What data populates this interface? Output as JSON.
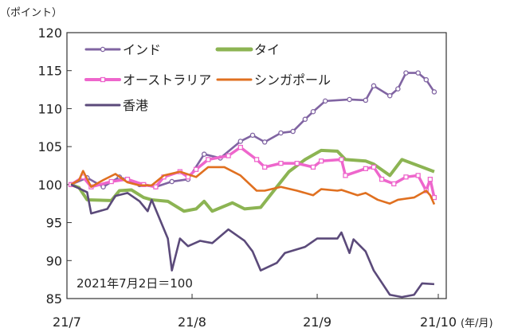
{
  "chart_data": {
    "type": "line",
    "ylabel": "（ポイント）",
    "xlabel_unit": "(年/月)",
    "annotation": "2021年7月2日＝100",
    "ylim": [
      85,
      120
    ],
    "yticks": [
      85,
      90,
      95,
      100,
      105,
      110,
      115,
      120
    ],
    "xlim": [
      "2021-07-01",
      "2021-10-01"
    ],
    "xticks": [
      {
        "date": "2021-07-01",
        "label": "21/7"
      },
      {
        "date": "2021-08-01",
        "label": "21/8"
      },
      {
        "date": "2021-09-01",
        "label": "21/9"
      },
      {
        "date": "2021-10-01",
        "label": "21/10"
      }
    ],
    "grid": false,
    "legend": "top-left",
    "series": [
      {
        "name": "インド",
        "color": "#8064a2",
        "marker": "circle",
        "points": [
          [
            "2021-07-02",
            100
          ],
          [
            "2021-07-06",
            100.9
          ],
          [
            "2021-07-10",
            99.7
          ],
          [
            "2021-07-14",
            101
          ],
          [
            "2021-07-19",
            100
          ],
          [
            "2021-07-23",
            99.7
          ],
          [
            "2021-07-27",
            100.4
          ],
          [
            "2021-07-31",
            100.7
          ],
          [
            "2021-08-04",
            104
          ],
          [
            "2021-08-08",
            103.5
          ],
          [
            "2021-08-13",
            105.7
          ],
          [
            "2021-08-16",
            106.5
          ],
          [
            "2021-08-19",
            105.6
          ],
          [
            "2021-08-23",
            106.8
          ],
          [
            "2021-08-26",
            107
          ],
          [
            "2021-08-29",
            108.6
          ],
          [
            "2021-08-31",
            109.6
          ],
          [
            "2021-09-03",
            111
          ],
          [
            "2021-09-09",
            111.2
          ],
          [
            "2021-09-13",
            111.1
          ],
          [
            "2021-09-15",
            113
          ],
          [
            "2021-09-19",
            111.7
          ],
          [
            "2021-09-21",
            112.6
          ],
          [
            "2021-09-23",
            114.7
          ],
          [
            "2021-09-26",
            114.7
          ],
          [
            "2021-09-28",
            113.8
          ],
          [
            "2021-09-30",
            112.2
          ]
        ]
      },
      {
        "name": "タイ",
        "color": "#8cb453",
        "marker": "none",
        "points": [
          [
            "2021-07-02",
            100
          ],
          [
            "2021-07-04",
            99.6
          ],
          [
            "2021-07-06",
            98
          ],
          [
            "2021-07-12",
            97.9
          ],
          [
            "2021-07-14",
            99.2
          ],
          [
            "2021-07-17",
            99.3
          ],
          [
            "2021-07-20",
            98.3
          ],
          [
            "2021-07-22",
            98
          ],
          [
            "2021-07-26",
            97.8
          ],
          [
            "2021-07-30",
            96.5
          ],
          [
            "2021-08-02",
            96.8
          ],
          [
            "2021-08-04",
            97.8
          ],
          [
            "2021-08-06",
            96.5
          ],
          [
            "2021-08-11",
            97.6
          ],
          [
            "2021-08-14",
            96.8
          ],
          [
            "2021-08-18",
            97
          ],
          [
            "2021-08-22",
            99.7
          ],
          [
            "2021-08-25",
            101.7
          ],
          [
            "2021-08-29",
            103.3
          ],
          [
            "2021-09-02",
            104.5
          ],
          [
            "2021-09-06",
            104.4
          ],
          [
            "2021-09-08",
            103.3
          ],
          [
            "2021-09-13",
            103.1
          ],
          [
            "2021-09-15",
            102.7
          ],
          [
            "2021-09-19",
            101.2
          ],
          [
            "2021-09-22",
            103.3
          ],
          [
            "2021-09-27",
            102.3
          ],
          [
            "2021-09-30",
            101.7
          ]
        ]
      },
      {
        "name": "オーストラリア",
        "color": "#ee66cc",
        "marker": "square",
        "points": [
          [
            "2021-07-02",
            100
          ],
          [
            "2021-07-05",
            101
          ],
          [
            "2021-07-07",
            99.7
          ],
          [
            "2021-07-12",
            100.4
          ],
          [
            "2021-07-16",
            100.7
          ],
          [
            "2021-07-20",
            100
          ],
          [
            "2021-07-23",
            99.7
          ],
          [
            "2021-07-25",
            101
          ],
          [
            "2021-07-29",
            101.7
          ],
          [
            "2021-07-31",
            101
          ],
          [
            "2021-08-02",
            102
          ],
          [
            "2021-08-05",
            103.3
          ],
          [
            "2021-08-10",
            103.8
          ],
          [
            "2021-08-13",
            104.9
          ],
          [
            "2021-08-17",
            103.3
          ],
          [
            "2021-08-19",
            102.3
          ],
          [
            "2021-08-23",
            102.8
          ],
          [
            "2021-08-27",
            102.8
          ],
          [
            "2021-08-31",
            102.3
          ],
          [
            "2021-09-02",
            103.1
          ],
          [
            "2021-09-07",
            103.3
          ],
          [
            "2021-09-08",
            101.2
          ],
          [
            "2021-09-13",
            102.1
          ],
          [
            "2021-09-15",
            102.3
          ],
          [
            "2021-09-17",
            100.7
          ],
          [
            "2021-09-20",
            100.1
          ],
          [
            "2021-09-23",
            101
          ],
          [
            "2021-09-26",
            101.2
          ],
          [
            "2021-09-28",
            99.2
          ],
          [
            "2021-09-29",
            100.7
          ],
          [
            "2021-09-30",
            98.3
          ]
        ]
      },
      {
        "name": "シンガポール",
        "color": "#e07020",
        "marker": "none",
        "points": [
          [
            "2021-07-02",
            100
          ],
          [
            "2021-07-04",
            100.6
          ],
          [
            "2021-07-05",
            101.8
          ],
          [
            "2021-07-07",
            99.7
          ],
          [
            "2021-07-10",
            100.6
          ],
          [
            "2021-07-13",
            101.4
          ],
          [
            "2021-07-16",
            100.3
          ],
          [
            "2021-07-19",
            99.9
          ],
          [
            "2021-07-22",
            99.9
          ],
          [
            "2021-07-25",
            101.2
          ],
          [
            "2021-07-29",
            101.7
          ],
          [
            "2021-08-02",
            101
          ],
          [
            "2021-08-05",
            102.3
          ],
          [
            "2021-08-09",
            102.3
          ],
          [
            "2021-08-13",
            101.2
          ],
          [
            "2021-08-17",
            99.2
          ],
          [
            "2021-08-19",
            99.2
          ],
          [
            "2021-08-23",
            99.7
          ],
          [
            "2021-08-27",
            99.2
          ],
          [
            "2021-08-31",
            98.6
          ],
          [
            "2021-09-02",
            99.4
          ],
          [
            "2021-09-06",
            99.2
          ],
          [
            "2021-09-07",
            99.3
          ],
          [
            "2021-09-11",
            98.6
          ],
          [
            "2021-09-13",
            98.9
          ],
          [
            "2021-09-16",
            98
          ],
          [
            "2021-09-19",
            97.5
          ],
          [
            "2021-09-21",
            98
          ],
          [
            "2021-09-25",
            98.3
          ],
          [
            "2021-09-28",
            99.2
          ],
          [
            "2021-09-29",
            98.6
          ],
          [
            "2021-09-30",
            97.4
          ]
        ]
      },
      {
        "name": "香港",
        "color": "#5b4a7a",
        "marker": "none",
        "points": [
          [
            "2021-07-02",
            100
          ],
          [
            "2021-07-06",
            99
          ],
          [
            "2021-07-07",
            96.2
          ],
          [
            "2021-07-11",
            96.8
          ],
          [
            "2021-07-13",
            98.5
          ],
          [
            "2021-07-16",
            98.9
          ],
          [
            "2021-07-19",
            97.8
          ],
          [
            "2021-07-21",
            96.5
          ],
          [
            "2021-07-22",
            98
          ],
          [
            "2021-07-26",
            92.9
          ],
          [
            "2021-07-27",
            88.7
          ],
          [
            "2021-07-29",
            92.9
          ],
          [
            "2021-07-31",
            91.9
          ],
          [
            "2021-08-03",
            92.6
          ],
          [
            "2021-08-06",
            92.3
          ],
          [
            "2021-08-10",
            94.1
          ],
          [
            "2021-08-14",
            92.6
          ],
          [
            "2021-08-16",
            91.2
          ],
          [
            "2021-08-18",
            88.7
          ],
          [
            "2021-08-22",
            89.7
          ],
          [
            "2021-08-24",
            91
          ],
          [
            "2021-08-29",
            91.8
          ],
          [
            "2021-09-01",
            92.9
          ],
          [
            "2021-09-06",
            92.9
          ],
          [
            "2021-09-07",
            93.7
          ],
          [
            "2021-09-09",
            91
          ],
          [
            "2021-09-10",
            92.8
          ],
          [
            "2021-09-13",
            91.2
          ],
          [
            "2021-09-15",
            88.7
          ],
          [
            "2021-09-19",
            85.5
          ],
          [
            "2021-09-22",
            85.2
          ],
          [
            "2021-09-25",
            85.5
          ],
          [
            "2021-09-27",
            87
          ],
          [
            "2021-09-30",
            86.9
          ]
        ]
      }
    ]
  }
}
